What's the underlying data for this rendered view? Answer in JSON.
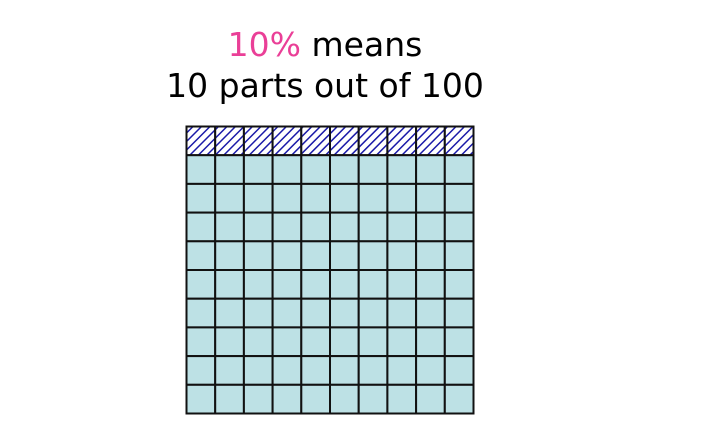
{
  "heading": {
    "percent": "10%",
    "line1_rest": " means",
    "line2": "10 parts out of 100"
  },
  "grid": {
    "rows": 10,
    "cols": 10,
    "shaded_parts": 10,
    "total_parts": 100,
    "fill_color": "#bde1e5",
    "hatch_color": "#1a1aa8",
    "line_color": "#111111"
  },
  "colors": {
    "highlight": "#ea3f97",
    "text": "#000000"
  }
}
